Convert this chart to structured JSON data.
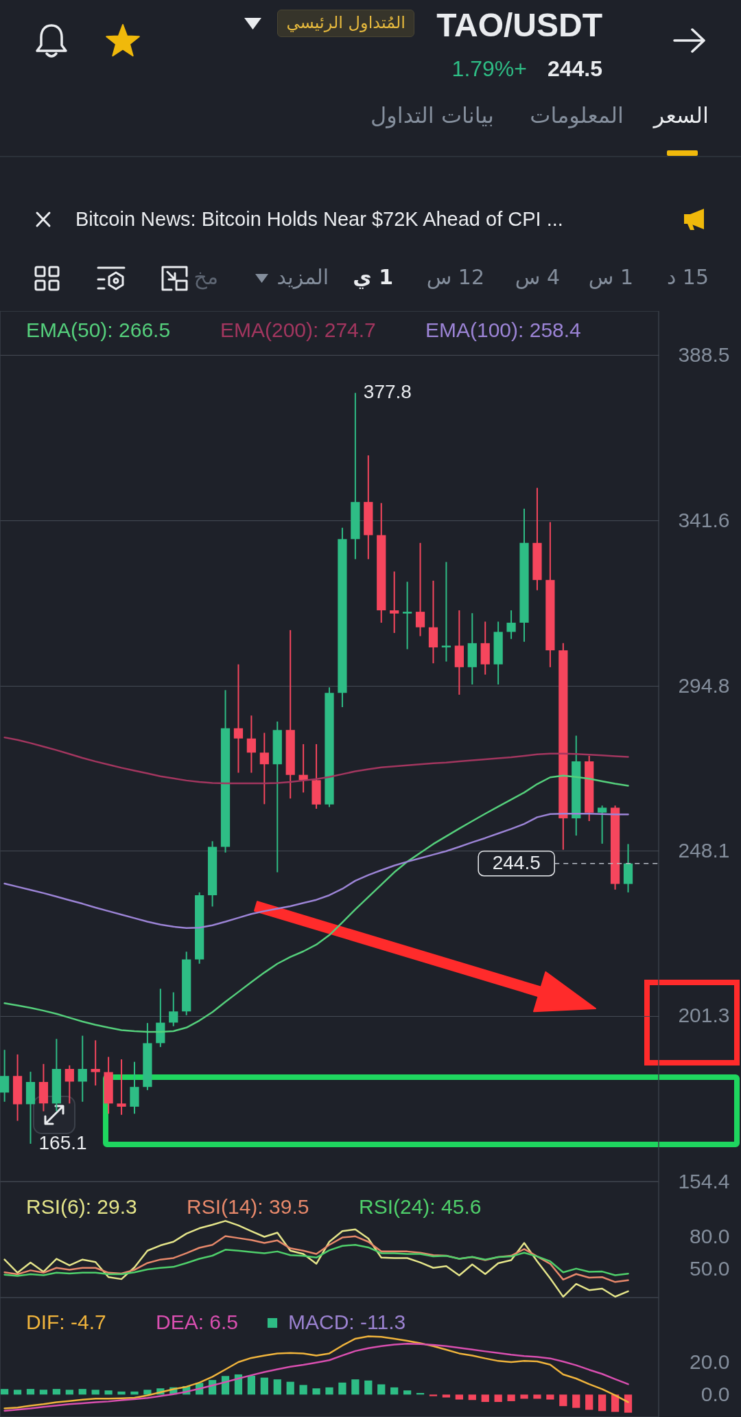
{
  "chart_data": [
    {
      "type": "other",
      "title": "TAO/USDT",
      "annotations": [
        "المُتداول الرئيسي",
        "1.79%+",
        "244.5",
        "السعر",
        "المعلومات",
        "بيانات التداول",
        "Bitcoin News: Bitcoin Holds Near $72K Ahead of CPI ...",
        "15 د",
        "1 س",
        "4 س",
        "12 س",
        "1 ي",
        "المزيد",
        "مخ"
      ]
    },
    {
      "type": "candlestick",
      "categories": [
        null,
        null,
        null,
        null,
        null,
        null,
        null,
        null,
        null,
        null,
        null,
        null,
        null,
        null,
        null,
        null,
        null,
        null,
        null,
        null,
        null,
        null,
        null,
        null,
        null,
        null,
        null,
        null,
        null,
        null,
        null,
        null,
        null,
        null,
        null,
        null,
        null,
        null,
        null,
        null,
        null,
        null,
        null,
        null,
        null,
        null,
        null,
        null,
        null
      ],
      "ohlc": [
        [
          179.6,
          191.7,
          177.0,
          184.3
        ],
        [
          184.3,
          190.4,
          171.6,
          176.3
        ],
        [
          176.3,
          185.5,
          165.1,
          182.6
        ],
        [
          182.6,
          187.7,
          174.3,
          176.5
        ],
        [
          176.5,
          194.8,
          174.3,
          186.3
        ],
        [
          186.3,
          187.3,
          176.5,
          182.7
        ],
        [
          182.7,
          195.7,
          177.0,
          186.3
        ],
        [
          186.3,
          194.4,
          181.6,
          185.4
        ],
        [
          185.4,
          189.7,
          173.6,
          176.5
        ],
        [
          176.5,
          189.0,
          173.3,
          175.6
        ],
        [
          175.6,
          188.3,
          173.6,
          181.2
        ],
        [
          181.2,
          199.3,
          180.3,
          193.6
        ],
        [
          193.6,
          209.0,
          192.5,
          199.4
        ],
        [
          199.4,
          208.0,
          198.4,
          202.6
        ],
        [
          202.6,
          219.5,
          201.5,
          217.3
        ],
        [
          217.3,
          236.3,
          216.1,
          235.5
        ],
        [
          235.5,
          250.8,
          232.3,
          249.2
        ],
        [
          249.2,
          293.6,
          247.6,
          282.8
        ],
        [
          282.8,
          300.9,
          270.2,
          279.9
        ],
        [
          279.9,
          286.4,
          270.2,
          275.9
        ],
        [
          275.9,
          281.5,
          261.3,
          272.6
        ],
        [
          272.6,
          284.7,
          242.0,
          282.3
        ],
        [
          282.3,
          310.6,
          262.9,
          269.6
        ],
        [
          269.6,
          278.3,
          264.6,
          268.1
        ],
        [
          268.1,
          278.3,
          260.0,
          261.2
        ],
        [
          261.2,
          294.4,
          260.5,
          292.8
        ],
        [
          292.8,
          339.6,
          288.8,
          336.4
        ],
        [
          336.4,
          377.8,
          330.7,
          346.9
        ],
        [
          346.9,
          360.1,
          330.7,
          337.5
        ],
        [
          337.5,
          346.6,
          312.7,
          316.2
        ],
        [
          316.2,
          327.2,
          309.8,
          315.3
        ],
        [
          315.3,
          324.3,
          305.2,
          315.8
        ],
        [
          315.8,
          335.3,
          308.9,
          311.4
        ],
        [
          311.4,
          324.6,
          301.2,
          305.7
        ],
        [
          305.7,
          329.9,
          301.7,
          306.2
        ],
        [
          306.2,
          316.2,
          292.3,
          300.1
        ],
        [
          300.1,
          315.4,
          295.2,
          306.9
        ],
        [
          306.9,
          313.0,
          298.0,
          300.9
        ],
        [
          300.9,
          313.0,
          295.2,
          310.1
        ],
        [
          310.1,
          316.2,
          308.1,
          312.7
        ],
        [
          312.7,
          345.0,
          307.3,
          335.3
        ],
        [
          335.3,
          350.9,
          321.9,
          324.8
        ],
        [
          324.8,
          341.2,
          300.1,
          304.9
        ],
        [
          304.9,
          306.9,
          248.4,
          257.3
        ],
        [
          257.3,
          280.7,
          252.4,
          273.4
        ],
        [
          273.4,
          275.0,
          256.5,
          258.9
        ],
        [
          258.9,
          260.9,
          250.1,
          260.3
        ],
        [
          260.3,
          260.9,
          237.1,
          238.7
        ],
        [
          238.7,
          250.0,
          236.3,
          244.5
        ]
      ],
      "colors": [
        "#2ebd85",
        "#f6465d",
        "#2ebd85",
        "#f6465d",
        "#2ebd85",
        "#f6465d",
        "#2ebd85",
        "#f6465d",
        "#f6465d",
        "#f6465d",
        "#2ebd85",
        "#2ebd85",
        "#2ebd85",
        "#2ebd85",
        "#2ebd85",
        "#2ebd85",
        "#2ebd85",
        "#2ebd85",
        "#f6465d",
        "#f6465d",
        "#f6465d",
        "#2ebd85",
        "#f6465d",
        "#f6465d",
        "#f6465d",
        "#2ebd85",
        "#2ebd85",
        "#2ebd85",
        "#f6465d",
        "#f6465d",
        "#f6465d",
        "#2ebd85",
        "#f6465d",
        "#f6465d",
        "#2ebd85",
        "#f6465d",
        "#2ebd85",
        "#f6465d",
        "#2ebd85",
        "#2ebd85",
        "#2ebd85",
        "#f6465d",
        "#f6465d",
        "#f6465d",
        "#2ebd85",
        "#f6465d",
        "#2ebd85",
        "#f6465d",
        "#2ebd85"
      ],
      "series": [
        {
          "name": "EMA(50): 266.5",
          "type": "line",
          "color": "#55d07c",
          "values": [
            204.9,
            204.3,
            203.6,
            202.8,
            201.9,
            200.8,
            199.7,
            198.8,
            198.0,
            197.3,
            197.0,
            196.8,
            196.8,
            197.0,
            198.0,
            200.0,
            202.4,
            205.3,
            208.1,
            210.9,
            213.6,
            216.1,
            218.0,
            219.6,
            221.5,
            224.2,
            227.8,
            231.5,
            235.0,
            238.5,
            242.0,
            245.0,
            247.5,
            250.0,
            252.2,
            254.4,
            256.5,
            258.6,
            260.6,
            262.6,
            264.6,
            267.0,
            268.9,
            269.4,
            269.0,
            268.5,
            267.8,
            267.1,
            266.5
          ]
        },
        {
          "name": "EMA(200): 274.7",
          "type": "line",
          "color": "#a3365f",
          "values": [
            280.2,
            279.5,
            278.6,
            277.6,
            276.6,
            275.5,
            274.4,
            273.4,
            272.5,
            271.6,
            270.8,
            270.0,
            269.2,
            268.6,
            268.0,
            267.6,
            267.3,
            267.2,
            267.2,
            267.2,
            267.2,
            267.3,
            267.6,
            268.0,
            268.4,
            269.0,
            269.8,
            270.6,
            271.2,
            271.7,
            272.0,
            272.3,
            272.6,
            272.9,
            273.1,
            273.4,
            273.7,
            274.0,
            274.3,
            274.6,
            275.0,
            275.4,
            275.6,
            275.6,
            275.5,
            275.3,
            275.1,
            274.9,
            274.7
          ]
        },
        {
          "name": "EMA(100): 258.4",
          "type": "line",
          "color": "#9c84d6",
          "values": [
            238.8,
            237.9,
            237.0,
            236.1,
            235.1,
            234.1,
            233.1,
            232.0,
            231.0,
            230.0,
            229.0,
            228.0,
            227.2,
            226.6,
            226.2,
            226.3,
            227.0,
            228.0,
            229.1,
            230.2,
            231.0,
            231.7,
            232.4,
            233.3,
            234.2,
            235.5,
            237.3,
            239.6,
            241.2,
            242.6,
            243.9,
            245.0,
            246.0,
            247.0,
            248.0,
            249.2,
            250.5,
            251.7,
            253.0,
            254.3,
            255.7,
            257.6,
            258.5,
            258.6,
            258.6,
            258.6,
            258.5,
            258.4,
            258.4
          ]
        }
      ],
      "ylim": [
        154.4,
        401
      ],
      "yticks": [
        388.5,
        341.6,
        294.8,
        248.1,
        201.3,
        154.4
      ],
      "grid": "y",
      "legend": "top left",
      "tick_labels": "y",
      "ref_lines": [
        {
          "axis": "y",
          "value": 244.5,
          "label": "244.5",
          "color": "#b7bdc6",
          "line_style": "dashed"
        }
      ],
      "annotations": [
        "377.8",
        "165.1"
      ]
    },
    {
      "type": "line",
      "categories": [
        null,
        null,
        null,
        null,
        null,
        null,
        null,
        null,
        null,
        null,
        null,
        null,
        null,
        null,
        null,
        null,
        null,
        null,
        null,
        null,
        null,
        null,
        null,
        null,
        null,
        null,
        null,
        null,
        null,
        null,
        null,
        null,
        null,
        null,
        null,
        null,
        null,
        null,
        null,
        null,
        null,
        null,
        null,
        null,
        null,
        null,
        null,
        null,
        null
      ],
      "series": [
        {
          "name": "RSI(6): 29.3",
          "color": "#e5e58a",
          "values": [
            58.7,
            46.5,
            56.0,
            47.4,
            59.4,
            53.3,
            58.7,
            56.4,
            42.4,
            40.6,
            51.5,
            66.9,
            71.8,
            75.2,
            82.7,
            87.7,
            90.9,
            94.5,
            90.4,
            85.0,
            79.8,
            83.6,
            66.9,
            63.9,
            54.8,
            75.2,
            85.0,
            86.6,
            78.2,
            60.5,
            60.1,
            60.1,
            56.0,
            51.0,
            52.6,
            44.0,
            54.2,
            45.3,
            55.3,
            58.2,
            74.1,
            57.1,
            41.3,
            24.2,
            36.1,
            30.4,
            31.8,
            24.3,
            29.3
          ]
        },
        {
          "name": "RSI(14): 39.5",
          "color": "#e8896b",
          "values": [
            46.9,
            45.1,
            48.7,
            46.5,
            51.0,
            49.2,
            51.0,
            51.0,
            46.5,
            45.8,
            49.2,
            55.5,
            58.7,
            60.1,
            64.6,
            69.6,
            72.3,
            80.4,
            78.6,
            76.8,
            74.1,
            76.4,
            69.1,
            66.9,
            63.9,
            72.3,
            79.1,
            80.2,
            75.2,
            66.2,
            66.2,
            66.2,
            65.0,
            62.8,
            62.3,
            59.4,
            61.0,
            58.2,
            61.0,
            62.3,
            68.4,
            61.6,
            54.8,
            40.1,
            45.3,
            41.9,
            42.4,
            37.9,
            39.5
          ]
        },
        {
          "name": "RSI(24): 45.6",
          "color": "#4fd06b",
          "values": [
            44.7,
            43.5,
            45.1,
            44.2,
            46.5,
            45.8,
            46.5,
            46.5,
            45.1,
            45.1,
            46.9,
            49.6,
            51.0,
            51.9,
            55.5,
            59.4,
            62.3,
            67.8,
            66.9,
            65.7,
            64.6,
            66.2,
            62.8,
            62.1,
            60.5,
            67.3,
            71.4,
            72.3,
            70.0,
            64.6,
            64.6,
            63.9,
            63.9,
            61.6,
            62.1,
            59.4,
            61.2,
            58.7,
            61.0,
            61.6,
            65.0,
            61.6,
            57.1,
            46.9,
            50.3,
            47.4,
            47.6,
            44.2,
            45.6
          ]
        }
      ],
      "ylim": [
        23.5,
        131
      ],
      "yticks": [
        {
          "value": 80,
          "label": "80.0"
        },
        {
          "value": 50,
          "label": "50.0"
        }
      ],
      "legend": "top left",
      "tick_labels": "y"
    },
    {
      "type": "line",
      "categories": [
        null,
        null,
        null,
        null,
        null,
        null,
        null,
        null,
        null,
        null,
        null,
        null,
        null,
        null,
        null,
        null,
        null,
        null,
        null,
        null,
        null,
        null,
        null,
        null,
        null,
        null,
        null,
        null,
        null,
        null,
        null,
        null,
        null,
        null,
        null,
        null,
        null,
        null,
        null,
        null,
        null,
        null,
        null,
        null,
        null,
        null,
        null,
        null,
        null
      ],
      "series": [
        {
          "name": "DIF: -4.7",
          "color": "#f0b43c",
          "values": [
            -8.6,
            -8.1,
            -6.9,
            -6.0,
            -4.8,
            -4.0,
            -3.2,
            -2.5,
            -2.5,
            -2.3,
            -2.0,
            -0.5,
            1.4,
            3.4,
            4.9,
            7.5,
            11.1,
            15.7,
            20.3,
            22.9,
            24.4,
            25.7,
            26.0,
            25.7,
            24.4,
            25.7,
            30.6,
            34.9,
            36.4,
            36.1,
            34.9,
            33.6,
            32.1,
            30.3,
            28.0,
            25.7,
            24.4,
            22.6,
            21.0,
            20.3,
            21.0,
            20.7,
            18.7,
            12.6,
            10.0,
            6.5,
            3.4,
            -0.4,
            -4.7
          ]
        },
        {
          "name": "DEA: 6.5",
          "color": "#d94fb0",
          "values": [
            -10.1,
            -9.4,
            -8.6,
            -7.7,
            -6.8,
            -6.0,
            -5.4,
            -4.8,
            -4.3,
            -3.5,
            -2.9,
            -2.1,
            -0.9,
            0.3,
            1.8,
            3.7,
            5.7,
            7.8,
            10.0,
            12.1,
            14.1,
            15.8,
            17.4,
            18.6,
            20.0,
            21.5,
            24.4,
            27.2,
            29.0,
            30.3,
            31.2,
            31.8,
            31.6,
            31.0,
            30.3,
            29.2,
            28.1,
            27.0,
            26.0,
            24.9,
            24.1,
            23.5,
            22.6,
            20.6,
            18.3,
            15.5,
            12.9,
            9.6,
            6.5
          ]
        },
        {
          "name": "MACD: -11.3",
          "type": "bar",
          "color": "#9b82d0",
          "colors": [
            "#2ebd85",
            "#2ebd85",
            "#2ebd85",
            "#2ebd85",
            "#2ebd85",
            "#2ebd85",
            "#2ebd85",
            "#2ebd85",
            "#2ebd85",
            "#2ebd85",
            "#2ebd85",
            "#2ebd85",
            "#2ebd85",
            "#2ebd85",
            "#2ebd85",
            "#2ebd85",
            "#2ebd85",
            "#2ebd85",
            "#2ebd85",
            "#2ebd85",
            "#2ebd85",
            "#2ebd85",
            "#2ebd85",
            "#2ebd85",
            "#2ebd85",
            "#2ebd85",
            "#2ebd85",
            "#2ebd85",
            "#2ebd85",
            "#2ebd85",
            "#2ebd85",
            "#2ebd85",
            "#2ebd85",
            "#f6465d",
            "#f6465d",
            "#f6465d",
            "#f6465d",
            "#f6465d",
            "#f6465d",
            "#f6465d",
            "#f6465d",
            "#f6465d",
            "#f6465d",
            "#f6465d",
            "#f6465d",
            "#f6465d",
            "#f6465d",
            "#f6465d",
            "#f6465d"
          ],
          "values": [
            3.5,
            3.0,
            3.5,
            3.0,
            3.5,
            3.0,
            3.5,
            3.0,
            2.6,
            1.9,
            1.9,
            3.0,
            3.9,
            4.5,
            5.3,
            7.3,
            9.1,
            11.6,
            12.6,
            11.8,
            10.6,
            9.5,
            8.0,
            6.0,
            3.9,
            4.5,
            7.5,
            9.5,
            8.8,
            6.4,
            4.5,
            2.6,
            1.0,
            -1.0,
            -1.8,
            -3.1,
            -3.4,
            -4.6,
            -4.6,
            -4.1,
            -2.6,
            -2.6,
            -3.1,
            -7.2,
            -8.3,
            -9.5,
            -10.3,
            -10.8,
            -11.3
          ]
        }
      ],
      "ylim": [
        -14,
        60.6
      ],
      "yticks": [
        {
          "value": 20,
          "label": "20.0"
        },
        {
          "value": 0,
          "label": "0.0"
        }
      ],
      "legend": "top left",
      "tick_labels": "y"
    }
  ]
}
